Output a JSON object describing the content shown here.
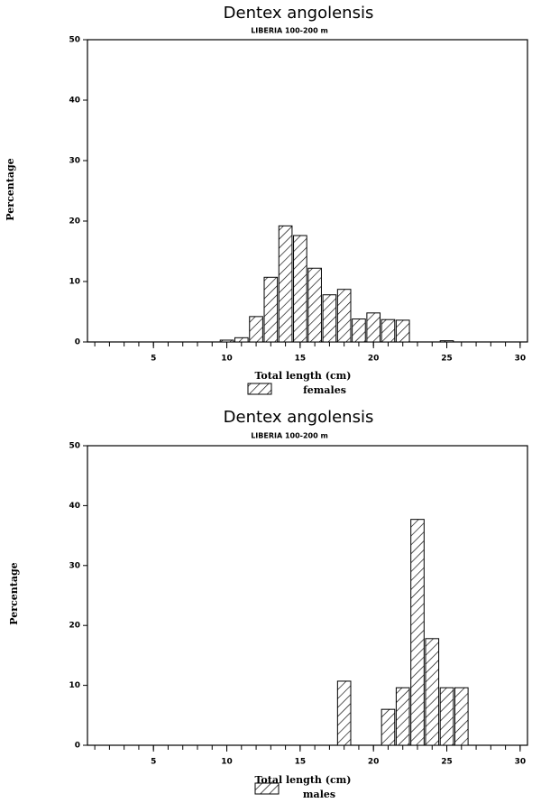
{
  "chart_data": [
    {
      "type": "bar",
      "title": "Dentex angolensis",
      "subtitle": "LIBERIA 100-200 m",
      "x_label": "Total length (cm)",
      "y_label": "Percentage",
      "x": [
        10,
        11,
        12,
        13,
        14,
        15,
        16,
        17,
        18,
        19,
        20,
        21,
        22,
        25
      ],
      "series": [
        {
          "name": "females",
          "color": "#000000",
          "values": [
            0.3,
            0.7,
            4.2,
            10.7,
            19.2,
            17.6,
            12.2,
            7.8,
            8.7,
            3.8,
            4.8,
            3.7,
            3.6,
            0.2
          ]
        }
      ],
      "xlim": [
        0.5,
        30.5
      ],
      "ylim": [
        0,
        50
      ],
      "xticks": [
        5,
        10,
        15,
        20,
        25,
        30
      ],
      "xminorticks": [
        1,
        2,
        3,
        4,
        5,
        6,
        7,
        8,
        9,
        10,
        11,
        12,
        13,
        14,
        15,
        16,
        17,
        18,
        19,
        20,
        21,
        22,
        23,
        24,
        25,
        26,
        27,
        28,
        29,
        30
      ],
      "yticks": [
        0,
        10,
        20,
        30,
        40,
        50
      ],
      "hatch": true
    },
    {
      "type": "bar",
      "title": "Dentex angolensis",
      "subtitle": "LIBERIA 100-200 m",
      "x_label": "Total length (cm)",
      "y_label": "Percentage",
      "x": [
        18,
        21,
        22,
        23,
        24,
        25,
        26
      ],
      "series": [
        {
          "name": "males",
          "color": "#000000",
          "values": [
            10.7,
            6.0,
            9.6,
            37.7,
            17.8,
            9.6,
            9.6
          ]
        }
      ],
      "xlim": [
        0.5,
        30.5
      ],
      "ylim": [
        0,
        50
      ],
      "xticks": [
        5,
        10,
        15,
        20,
        25,
        30
      ],
      "xminorticks": [
        1,
        2,
        3,
        4,
        5,
        6,
        7,
        8,
        9,
        10,
        11,
        12,
        13,
        14,
        15,
        16,
        17,
        18,
        19,
        20,
        21,
        22,
        23,
        24,
        25,
        26,
        27,
        28,
        29,
        30
      ],
      "yticks": [
        0,
        10,
        20,
        30,
        40,
        50
      ],
      "hatch": true
    }
  ]
}
